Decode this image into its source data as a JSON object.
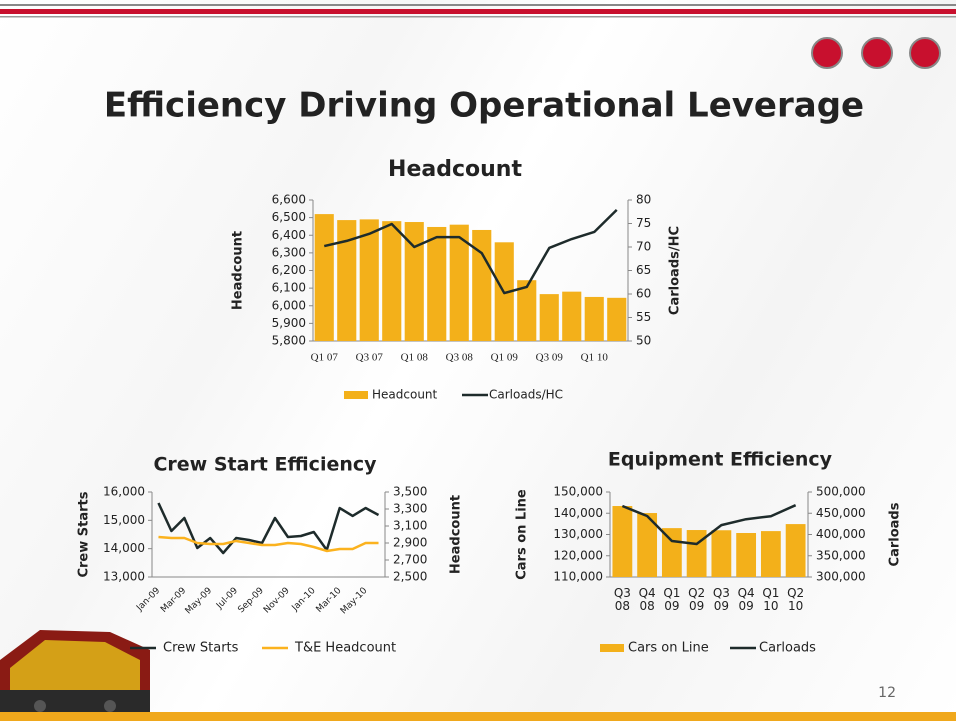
{
  "title": "Efficiency Driving Operational Leverage",
  "page_number": "12",
  "chart_data": [
    {
      "type": "combo",
      "title": "Headcount",
      "categories": [
        "Q1 07",
        null,
        "Q3 07",
        null,
        "Q1 08",
        null,
        "Q3 08",
        null,
        "Q1 09",
        null,
        "Q3 09",
        null,
        "Q1 10",
        null
      ],
      "ylabel": "Headcount",
      "y2label": "Carloads/HC",
      "ylim": [
        5800,
        6600
      ],
      "yticks": [
        {
          "value": 5800,
          "label": "5,800"
        },
        {
          "value": 5900,
          "label": "5,900"
        },
        {
          "value": 6000,
          "label": "6,000"
        },
        {
          "value": 6100,
          "label": "6,100"
        },
        {
          "value": 6200,
          "label": "6,200"
        },
        {
          "value": 6300,
          "label": "6,300"
        },
        {
          "value": 6400,
          "label": "6,400"
        },
        {
          "value": 6500,
          "label": "6,500"
        },
        {
          "value": 6600,
          "label": "6,600"
        }
      ],
      "y2lim": [
        50,
        80
      ],
      "y2ticks": [
        50,
        55,
        60,
        65,
        70,
        75,
        80
      ],
      "series": [
        {
          "name": "Headcount",
          "color": "#f3b01a",
          "values": [
            6520,
            6486,
            6490,
            6480,
            6475,
            6447,
            6460,
            6430,
            6360,
            6145,
            6066,
            6080,
            6050,
            6045
          ]
        },
        {
          "name": "Carloads/HC",
          "color": "#1e2b2b",
          "axis": "y2",
          "values": [
            70.2,
            71.3,
            72.8,
            74.9,
            70.0,
            72.1,
            72.1,
            68.7,
            60.2,
            61.5,
            69.8,
            71.7,
            73.2,
            77.9
          ]
        }
      ]
    },
    {
      "type": "line",
      "title": "Crew Start Efficiency",
      "categories": [
        "Jan-09",
        null,
        "Mar-09",
        null,
        "May-09",
        null,
        "Jul-09",
        null,
        "Sep-09",
        null,
        "Nov-09",
        null,
        "Jan-10",
        null,
        "Mar-10",
        null,
        "May-10",
        null
      ],
      "ylabel": "Crew Starts",
      "y2label": "Headcount",
      "ylim": [
        13000,
        16000
      ],
      "yticks": [
        {
          "value": 13000,
          "label": "13,000"
        },
        {
          "value": 14000,
          "label": "14,000"
        },
        {
          "value": 15000,
          "label": "15,000"
        },
        {
          "value": 16000,
          "label": "16,000"
        }
      ],
      "y2lim": [
        2500,
        3500
      ],
      "y2ticks": [
        {
          "value": 2500,
          "label": "2,500"
        },
        {
          "value": 2700,
          "label": "2,700"
        },
        {
          "value": 2900,
          "label": "2,900"
        },
        {
          "value": 3100,
          "label": "3,100"
        },
        {
          "value": 3300,
          "label": "3,300"
        },
        {
          "value": 3500,
          "label": "3,500"
        }
      ],
      "series": [
        {
          "name": "Crew Starts",
          "color": "#1e2b2b",
          "values": [
            15612,
            14624,
            15082,
            14024,
            14376,
            13847,
            14376,
            14306,
            14200,
            15082,
            14412,
            14447,
            14588,
            13953,
            15435,
            15153,
            15435,
            15188
          ]
        },
        {
          "name": "T&E Headcount",
          "color": "#fbb21e",
          "axis": "y2",
          "values": [
            2971,
            2959,
            2959,
            2900,
            2888,
            2888,
            2924,
            2900,
            2876,
            2876,
            2900,
            2888,
            2853,
            2806,
            2829,
            2829,
            2900,
            2900
          ]
        }
      ]
    },
    {
      "type": "combo",
      "title": "Equipment Efficiency",
      "categories": [
        "Q3 08",
        "Q4 08",
        "Q1 09",
        "Q2 09",
        "Q3 09",
        "Q4 09",
        "Q1 10",
        "Q2 10"
      ],
      "ylabel": "Cars on Line",
      "y2label": "Carloads",
      "ylim": [
        110000,
        150000
      ],
      "yticks": [
        {
          "value": 110000,
          "label": "110,000"
        },
        {
          "value": 120000,
          "label": "120,000"
        },
        {
          "value": 130000,
          "label": "130,000"
        },
        {
          "value": 140000,
          "label": "140,000"
        },
        {
          "value": 150000,
          "label": "150,000"
        }
      ],
      "y2lim": [
        300000,
        500000
      ],
      "y2ticks": [
        {
          "value": 300000,
          "label": "300,000"
        },
        {
          "value": 350000,
          "label": "350,000"
        },
        {
          "value": 400000,
          "label": "400,000"
        },
        {
          "value": 450000,
          "label": "450,000"
        },
        {
          "value": 500000,
          "label": "500,000"
        }
      ],
      "series": [
        {
          "name": "Cars on Line",
          "color": "#f3b01a",
          "values": [
            143400,
            140100,
            133000,
            132100,
            132000,
            130700,
            131600,
            134900
          ]
        },
        {
          "name": "Carloads",
          "color": "#1e2b2b",
          "axis": "y2",
          "values": [
            467000,
            443500,
            384700,
            377600,
            422000,
            436000,
            443000,
            469000
          ]
        }
      ]
    }
  ]
}
